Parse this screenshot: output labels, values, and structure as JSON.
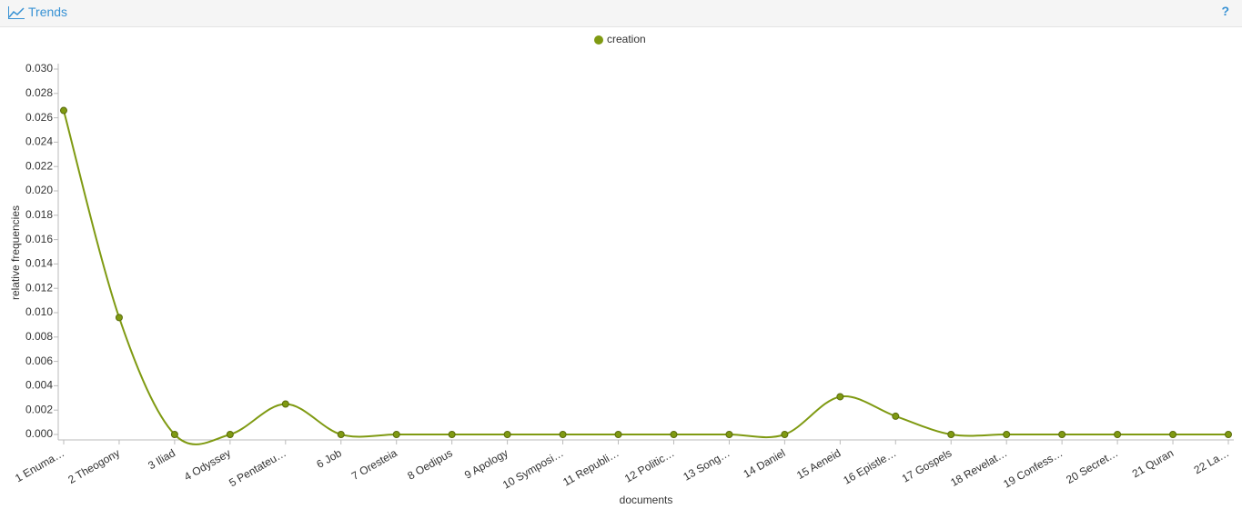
{
  "panel": {
    "title": "Trends",
    "help": "?"
  },
  "chart_data": {
    "type": "line",
    "x_label": "documents",
    "y_label": "relative frequencies",
    "categories": [
      "1 Enuma…",
      "2 Theogony",
      "3 Iliad",
      "4 Odyssey",
      "5 Pentateu…",
      "6 Job",
      "7 Oresteia",
      "8 Oedipus",
      "9 Apology",
      "10 Symposi…",
      "11 Republi…",
      "12 Politic…",
      "13 Song…",
      "14 Daniel",
      "15 Aeneid",
      "16 Epistle…",
      "17 Gospels",
      "18 Revelat…",
      "19 Confess…",
      "20 Secret…",
      "21 Quran",
      "22 La…"
    ],
    "series": [
      {
        "name": "creation",
        "color": "#7f9a12",
        "values": [
          0.0266,
          0.0096,
          0,
          0,
          0.0025,
          0,
          0,
          0,
          0,
          0,
          0,
          0,
          0,
          0,
          0.0031,
          0.0015,
          0,
          0,
          0,
          0,
          0,
          0
        ]
      }
    ],
    "ylim": [
      0,
      0.03
    ],
    "yticks": [
      {
        "value": 0,
        "label": "0.000"
      },
      {
        "value": 0.002,
        "label": "0.002"
      },
      {
        "value": 0.004,
        "label": "0.004"
      },
      {
        "value": 0.006,
        "label": "0.006"
      },
      {
        "value": 0.008,
        "label": "0.008"
      },
      {
        "value": 0.01,
        "label": "0.010"
      },
      {
        "value": 0.012,
        "label": "0.012"
      },
      {
        "value": 0.014,
        "label": "0.014"
      },
      {
        "value": 0.016,
        "label": "0.016"
      },
      {
        "value": 0.018,
        "label": "0.018"
      },
      {
        "value": 0.02,
        "label": "0.020"
      },
      {
        "value": 0.022,
        "label": "0.022"
      },
      {
        "value": 0.024,
        "label": "0.024"
      },
      {
        "value": 0.026,
        "label": "0.026"
      },
      {
        "value": 0.028,
        "label": "0.028"
      },
      {
        "value": 0.03,
        "label": "0.030"
      }
    ],
    "grid": false,
    "legend": "top"
  }
}
